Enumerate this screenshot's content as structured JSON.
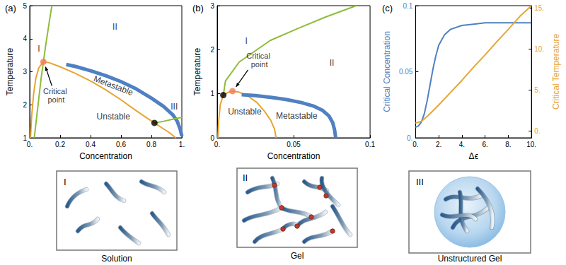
{
  "chart_data": [
    {
      "type": "line",
      "title": "(a)",
      "xlabel": "Concentration",
      "ylabel": "Temperature",
      "xlim": [
        0,
        1
      ],
      "ylim": [
        1,
        5
      ],
      "xticks": [
        {
          "value": 0,
          "label": "0."
        },
        0.2,
        0.4,
        0.6,
        0.8,
        {
          "value": 1,
          "label": "1."
        }
      ],
      "yticks": [
        1,
        2,
        3,
        4,
        5
      ],
      "grid": false,
      "series": [
        {
          "color": "#8fbc3a",
          "line_style": "solid",
          "x": [
            0.03,
            0.045,
            0.06,
            0.075,
            0.09,
            0.105,
            0.12,
            0.135,
            0.146
          ],
          "values": [
            1.0,
            1.6,
            2.2,
            2.8,
            3.3,
            3.8,
            4.25,
            4.7,
            5.0
          ]
        },
        {
          "color": "#e6a532",
          "line_style": "solid",
          "x": [
            0.005,
            0.012,
            0.025,
            0.04,
            0.06,
            0.09,
            0.13,
            0.2,
            0.3,
            0.4,
            0.5,
            0.6,
            0.7,
            0.77,
            0.82,
            0.87,
            0.92,
            0.96
          ],
          "values": [
            1.0,
            1.6,
            2.3,
            2.8,
            3.12,
            3.3,
            3.27,
            3.15,
            2.95,
            2.72,
            2.45,
            2.15,
            1.82,
            1.6,
            1.45,
            1.3,
            1.15,
            1.0
          ]
        },
        {
          "color": "#4f81c2",
          "line_style": "thick",
          "x": [
            0.24,
            0.3,
            0.4,
            0.5,
            0.6,
            0.7,
            0.8,
            0.88,
            0.94,
            0.97,
            0.99,
            1.0
          ],
          "values": [
            3.22,
            3.16,
            3.03,
            2.88,
            2.7,
            2.48,
            2.2,
            1.95,
            1.7,
            1.5,
            1.25,
            1.05
          ]
        },
        {
          "color": "#8fbc3a",
          "line_style": "solid",
          "x": [
            0.82,
            0.88,
            0.94,
            1.0
          ],
          "values": [
            1.45,
            1.5,
            1.56,
            1.62
          ]
        },
        {
          "name": "Critical point",
          "type": "scatter",
          "marker": "circle",
          "color": "#f47c5a",
          "x": [
            0.09
          ],
          "values": [
            3.3
          ]
        },
        {
          "type": "scatter",
          "marker": "circle",
          "color": "#000000",
          "x": [
            0.82
          ],
          "values": [
            1.45
          ]
        }
      ],
      "annotations": [
        {
          "text": "I",
          "x": 0.06,
          "y": 3.7
        },
        {
          "text": "II",
          "x": 0.56,
          "y": 4.35
        },
        {
          "text": "Metastable",
          "x": 0.55,
          "y": 2.58
        },
        {
          "text": "Unstable",
          "x": 0.55,
          "y": 1.65
        },
        {
          "text": "III",
          "x": 0.95,
          "y": 1.95
        }
      ]
    },
    {
      "type": "line",
      "title": "(b)",
      "xlabel": "Concentration",
      "ylabel": "Temperature",
      "xlim": [
        0,
        0.1
      ],
      "ylim": [
        0,
        3
      ],
      "xticks": [
        {
          "value": 0,
          "label": "0."
        },
        0.05,
        0.1
      ],
      "yticks": [
        0,
        1,
        2,
        3
      ],
      "grid": false,
      "series": [
        {
          "color": "#8fbc3a",
          "line_style": "solid",
          "x": [
            0.004,
            0.0054,
            0.0144,
            0.0347,
            0.0527,
            0.0707,
            0.091
          ],
          "values": [
            0.97,
            1.29,
            1.72,
            2.21,
            2.48,
            2.74,
            3.0
          ]
        },
        {
          "color": "#e6a532",
          "line_style": "solid",
          "x": [
            0.0005,
            0.001,
            0.002,
            0.004,
            0.007,
            0.01,
            0.014,
            0.02,
            0.026,
            0.031,
            0.035,
            0.0375,
            0.0385
          ],
          "values": [
            0,
            0.4,
            0.75,
            0.97,
            1.03,
            1.06,
            1.04,
            0.95,
            0.8,
            0.6,
            0.4,
            0.2,
            0
          ]
        },
        {
          "color": "#4f81c2",
          "line_style": "thick",
          "x": [
            0.016,
            0.025,
            0.035,
            0.045,
            0.055,
            0.063,
            0.069,
            0.073,
            0.0755,
            0.0768,
            0.0775
          ],
          "values": [
            0.98,
            0.96,
            0.92,
            0.87,
            0.8,
            0.72,
            0.62,
            0.5,
            0.35,
            0.18,
            0
          ]
        },
        {
          "name": "Critical point",
          "type": "scatter",
          "marker": "circle",
          "color": "#f47c5a",
          "x": [
            0.01
          ],
          "values": [
            1.06
          ]
        },
        {
          "type": "scatter",
          "marker": "circle",
          "color": "#000000",
          "x": [
            0.004
          ],
          "values": [
            0.97
          ]
        }
      ],
      "annotations": [
        {
          "text": "I",
          "x": 0.019,
          "y": 2.2
        },
        {
          "text": "II",
          "x": 0.075,
          "y": 1.7
        },
        {
          "text": "Unstable",
          "x": 0.018,
          "y": 0.6
        },
        {
          "text": "Metastable",
          "x": 0.052,
          "y": 0.5
        }
      ]
    },
    {
      "type": "line",
      "title": "(c)",
      "xlabel": "Δϵ",
      "ylabel": "Critical Concentration",
      "y2label": "Critical Temperature",
      "xlim": [
        0,
        10
      ],
      "ylim": [
        0,
        0.1
      ],
      "y2lim": [
        -0.8,
        15.3
      ],
      "xticks": [
        {
          "value": 0,
          "label": "0."
        },
        {
          "value": 2,
          "label": "2."
        },
        {
          "value": 4,
          "label": "4."
        },
        {
          "value": 6,
          "label": "6."
        },
        {
          "value": 8,
          "label": "8."
        },
        {
          "value": 10,
          "label": "10."
        }
      ],
      "yticks": [
        {
          "value": 0,
          "label": "0."
        },
        0.05,
        0.1
      ],
      "y2ticks": [
        {
          "value": 0,
          "label": "0."
        },
        {
          "value": 5,
          "label": "5."
        },
        {
          "value": 10,
          "label": "10."
        },
        {
          "value": 15,
          "label": "15."
        }
      ],
      "grid": false,
      "series": [
        {
          "color": "#4f81c2",
          "line_style": "solid",
          "x": [
            0,
            0.25,
            0.5,
            0.75,
            1,
            1.25,
            1.5,
            1.75,
            2,
            2.5,
            3,
            4,
            5,
            6,
            8,
            10
          ],
          "values": [
            0.008,
            0.009,
            0.012,
            0.018,
            0.028,
            0.04,
            0.052,
            0.062,
            0.07,
            0.078,
            0.082,
            0.085,
            0.086,
            0.087,
            0.087,
            0.087
          ]
        },
        {
          "color": "#e6a532",
          "line_style": "solid",
          "axis": "y2",
          "x": [
            0,
            0.5,
            1,
            1.5,
            2,
            3,
            4,
            5,
            6,
            7,
            8,
            9,
            10
          ],
          "values": [
            1.0,
            1.2,
            1.8,
            2.5,
            3.2,
            4.7,
            6.2,
            7.8,
            9.3,
            10.9,
            12.4,
            14.0,
            15.3
          ]
        }
      ],
      "annotations": []
    }
  ],
  "illustrations": [
    {
      "label": "I",
      "caption": "Solution"
    },
    {
      "label": "II",
      "caption": "Gel"
    },
    {
      "label": "III",
      "caption": "Unstructured Gel"
    }
  ]
}
